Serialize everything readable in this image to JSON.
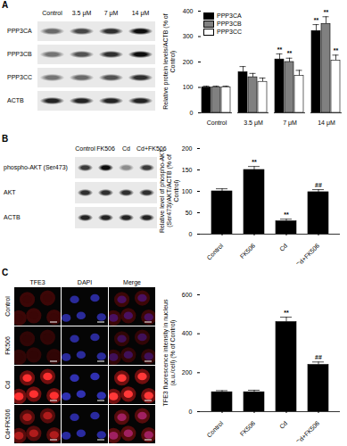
{
  "chart_data": [
    {
      "type": "bar",
      "ylabel": "Relative protein levels/ACTB (% of Control)",
      "categories": [
        "Control",
        "3.5 μM",
        "7 μM",
        "14 μM"
      ],
      "series": [
        {
          "name": "PPP3CA",
          "color": "#000000",
          "values": [
            100,
            160,
            210,
            322
          ],
          "errors": [
            5,
            22,
            22,
            25
          ]
        },
        {
          "name": "PPP3CB",
          "color": "#808080",
          "values": [
            100,
            140,
            200,
            350
          ],
          "errors": [
            5,
            15,
            15,
            28
          ]
        },
        {
          "name": "PPP3CC",
          "color": "#ffffff",
          "values": [
            100,
            122,
            145,
            205
          ],
          "errors": [
            5,
            15,
            22,
            22
          ]
        }
      ],
      "ylim": [
        0,
        400
      ],
      "yticks": [
        0,
        100,
        200,
        300,
        400
      ],
      "grid": false,
      "legend": "top-left",
      "annotations": [
        {
          "category": "7 μM",
          "series": "PPP3CA",
          "label": "**"
        },
        {
          "category": "7 μM",
          "series": "PPP3CB",
          "label": "**"
        },
        {
          "category": "14 μM",
          "series": "PPP3CA",
          "label": "**"
        },
        {
          "category": "14 μM",
          "series": "PPP3CB",
          "label": "**"
        },
        {
          "category": "14 μM",
          "series": "PPP3CC",
          "label": "**"
        }
      ]
    },
    {
      "type": "bar",
      "ylabel": "Relative level of phospho-AKT (Ser473)/AKT/ACTB (% of Control)",
      "categories": [
        "Control",
        "FK506",
        "Cd",
        "Cd+FK506"
      ],
      "values": [
        100,
        150,
        30,
        98
      ],
      "errors": [
        6,
        8,
        5,
        6
      ],
      "color": "#000000",
      "ylim": [
        0,
        200
      ],
      "yticks": [
        0,
        50,
        100,
        150,
        200
      ],
      "grid": false,
      "annotations": [
        {
          "category": "FK506",
          "label": "**"
        },
        {
          "category": "Cd",
          "label": "**"
        },
        {
          "category": "Cd+FK506",
          "label": "##"
        }
      ]
    },
    {
      "type": "bar",
      "ylabel": "TFE3 fluorescence intensity in nucleus (a.u./cell) (% of Control)",
      "categories": [
        "Control",
        "FK506",
        "Cd",
        "Cd+FK506"
      ],
      "values": [
        100,
        100,
        460,
        240
      ],
      "errors": [
        8,
        10,
        25,
        15
      ],
      "color": "#000000",
      "ylim": [
        0,
        600
      ],
      "yticks": [
        0,
        200,
        400,
        600
      ],
      "grid": false,
      "annotations": [
        {
          "category": "Cd",
          "label": "**"
        },
        {
          "category": "Cd+FK506",
          "label": "##"
        }
      ]
    }
  ],
  "panels": [
    {
      "label": "A",
      "lanes": [
        "Control",
        "3.5 μM",
        "7 μM",
        "14 μM"
      ],
      "rows": [
        "PPP3CA",
        "PPP3CB",
        "PPP3CC",
        "ACTB"
      ]
    },
    {
      "label": "B",
      "lanes": [
        "Control",
        "FK506",
        "Cd",
        "Cd+FK506"
      ],
      "rows": [
        "phospho-AKT (Ser473)",
        "AKT",
        "ACTB"
      ]
    },
    {
      "label": "C",
      "columns": [
        "TFE3",
        "DAPI",
        "Merge"
      ],
      "rows": [
        "Control",
        "FK506",
        "Cd",
        "Cd+FK506"
      ]
    }
  ]
}
